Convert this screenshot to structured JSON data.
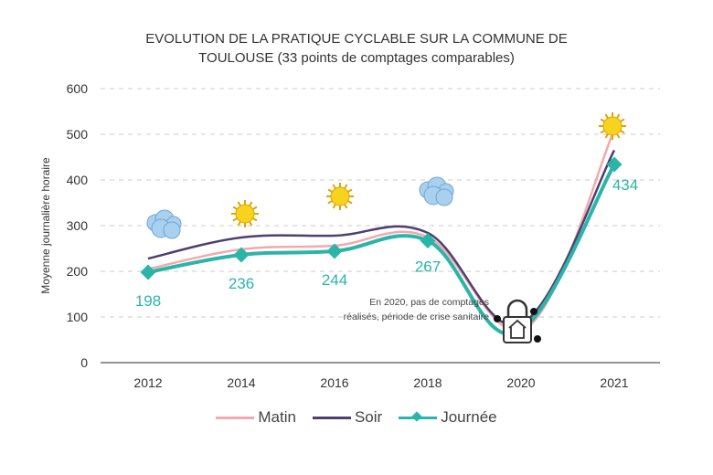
{
  "chart_data": {
    "type": "line",
    "title": "EVOLUTION DE LA PRATIQUE CYCLABLE SUR LA COMMUNE DE TOULOUSE (33 points de comptages comparables)",
    "title_lines": [
      "EVOLUTION DE LA PRATIQUE CYCLABLE SUR LA COMMUNE DE",
      "TOULOUSE (33 points de comptages comparables)"
    ],
    "xlabel": "",
    "ylabel": "Moyenne journalière horaire",
    "categories": [
      "2012",
      "2014",
      "2016",
      "2018",
      "2020",
      "2021"
    ],
    "ylim": [
      0,
      600
    ],
    "yticks": [
      "0",
      "100",
      "200",
      "300",
      "400",
      "500",
      "600"
    ],
    "grid": true,
    "legend": "bottom",
    "series": [
      {
        "name": "Matin",
        "color": "#f2a9ad",
        "values": [
          205,
          248,
          256,
          275,
          null,
          510
        ]
      },
      {
        "name": "Soir",
        "color": "#4e3f6e",
        "values": [
          228,
          274,
          278,
          284,
          null,
          465
        ]
      },
      {
        "name": "Journée",
        "color": "#2bb5a8",
        "values": [
          198,
          236,
          244,
          267,
          null,
          434
        ],
        "labels": [
          "198",
          "236",
          "244",
          "267",
          "",
          "434"
        ]
      }
    ],
    "annotation": [
      "En 2020, pas de comptages",
      "réalisés, période de crise sanitaire"
    ],
    "weather_icons": [
      "cloud-icon",
      "sun-icon",
      "sun-icon",
      "cloud-icon",
      "lock-house-icon",
      "sun-icon"
    ]
  }
}
